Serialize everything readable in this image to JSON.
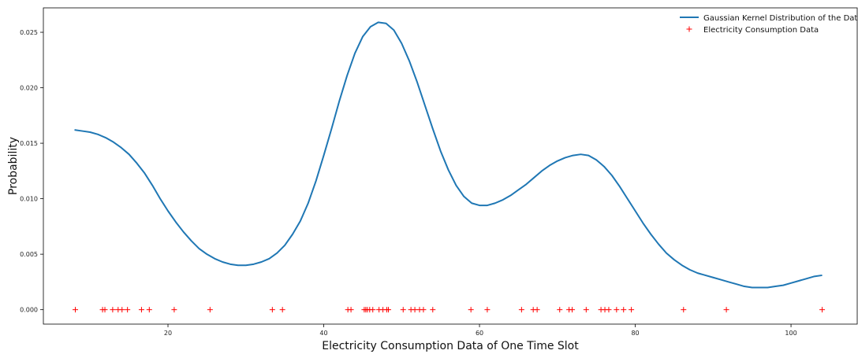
{
  "chart_data": {
    "type": "line",
    "title": "",
    "xlabel": "Electricity Consumption Data of One Time Slot",
    "ylabel": "Probability",
    "xlim": [
      4,
      108.5
    ],
    "ylim": [
      -0.0013,
      0.0272
    ],
    "x_ticks": [
      20,
      40,
      60,
      80,
      100
    ],
    "y_ticks": [
      0.0,
      0.005,
      0.01,
      0.015,
      0.02,
      0.025
    ],
    "x_tick_labels": [
      "20",
      "40",
      "60",
      "80",
      "100"
    ],
    "y_tick_labels": [
      "0.000",
      "0.005",
      "0.010",
      "0.015",
      "0.020",
      "0.025"
    ],
    "grid": false,
    "legend_position": "top-right",
    "series": [
      {
        "name": "Gaussian Kernel Distribution of the Data",
        "kind": "line",
        "color": "#1f77b4",
        "x": [
          8,
          9,
          10,
          11,
          12,
          13,
          14,
          15,
          16,
          17,
          18,
          19,
          20,
          21,
          22,
          23,
          24,
          25,
          26,
          27,
          28,
          29,
          30,
          31,
          32,
          33,
          34,
          35,
          36,
          37,
          38,
          39,
          40,
          41,
          42,
          43,
          44,
          45,
          46,
          47,
          48,
          49,
          50,
          51,
          52,
          53,
          54,
          55,
          56,
          57,
          58,
          59,
          60,
          61,
          62,
          63,
          64,
          65,
          66,
          67,
          68,
          69,
          70,
          71,
          72,
          73,
          74,
          75,
          76,
          77,
          78,
          79,
          80,
          81,
          82,
          83,
          84,
          85,
          86,
          87,
          88,
          89,
          90,
          91,
          92,
          93,
          94,
          95,
          96,
          97,
          98,
          99,
          100,
          101,
          102,
          103,
          104
        ],
        "y": [
          0.0162,
          0.0161,
          0.016,
          0.0158,
          0.0155,
          0.0151,
          0.0146,
          0.014,
          0.0132,
          0.0123,
          0.0112,
          0.01,
          0.0089,
          0.0079,
          0.007,
          0.0062,
          0.0055,
          0.005,
          0.0046,
          0.0043,
          0.0041,
          0.004,
          0.004,
          0.0041,
          0.0043,
          0.0046,
          0.0051,
          0.0058,
          0.0068,
          0.008,
          0.0096,
          0.0116,
          0.0139,
          0.0163,
          0.0188,
          0.0211,
          0.0231,
          0.0246,
          0.0255,
          0.0259,
          0.0258,
          0.0252,
          0.024,
          0.0224,
          0.0205,
          0.0184,
          0.0163,
          0.0143,
          0.0126,
          0.0112,
          0.0102,
          0.0096,
          0.0094,
          0.0094,
          0.0096,
          0.0099,
          0.0103,
          0.0108,
          0.0113,
          0.0119,
          0.0125,
          0.013,
          0.0134,
          0.0137,
          0.0139,
          0.014,
          0.0139,
          0.0135,
          0.0129,
          0.0121,
          0.0111,
          0.01,
          0.0089,
          0.0078,
          0.0068,
          0.0059,
          0.0051,
          0.0045,
          0.004,
          0.0036,
          0.0033,
          0.0031,
          0.0029,
          0.0027,
          0.0025,
          0.0023,
          0.0021,
          0.002,
          0.002,
          0.002,
          0.0021,
          0.0022,
          0.0024,
          0.0026,
          0.0028,
          0.003,
          0.0031
        ]
      },
      {
        "name": "Electricity Consumption Data",
        "kind": "scatter",
        "marker": "+",
        "color": "#ff0000",
        "x": [
          8.1,
          11.6,
          11.9,
          12.9,
          13.6,
          14.1,
          14.8,
          16.6,
          17.6,
          20.8,
          25.4,
          33.4,
          34.7,
          43.1,
          43.5,
          45.2,
          45.4,
          45.6,
          45.9,
          46.3,
          47.1,
          47.6,
          48.1,
          48.3,
          50.2,
          51.2,
          51.7,
          52.3,
          52.8,
          54.0,
          58.9,
          61.0,
          65.4,
          66.9,
          67.4,
          70.3,
          71.5,
          71.9,
          73.7,
          75.6,
          76.1,
          76.6,
          77.6,
          78.5,
          79.5,
          86.2,
          91.7,
          104.0
        ],
        "y": [
          0,
          0,
          0,
          0,
          0,
          0,
          0,
          0,
          0,
          0,
          0,
          0,
          0,
          0,
          0,
          0,
          0,
          0,
          0,
          0,
          0,
          0,
          0,
          0,
          0,
          0,
          0,
          0,
          0,
          0,
          0,
          0,
          0,
          0,
          0,
          0,
          0,
          0,
          0,
          0,
          0,
          0,
          0,
          0,
          0,
          0,
          0,
          0
        ]
      }
    ]
  }
}
